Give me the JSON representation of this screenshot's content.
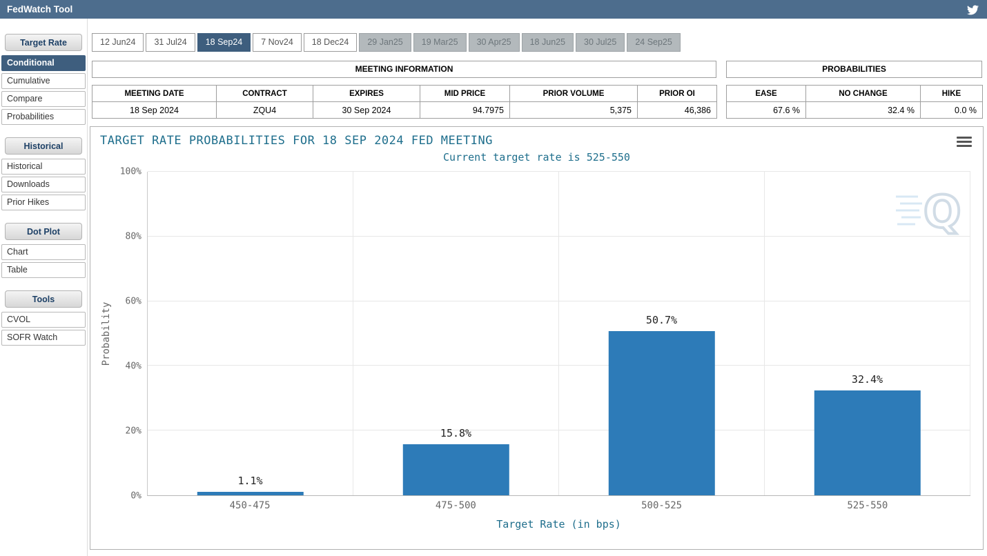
{
  "topbar": {
    "title": "FedWatch Tool"
  },
  "icons": {
    "topbar_social": "twitter-bird",
    "chart_menu": "hamburger-menu",
    "watermark": "q-logo"
  },
  "colors": {
    "topbar": "#4d6d8d",
    "selected": "#3e5e7e",
    "bar": "#2d7bb8",
    "chart_text": "#1e6e8c"
  },
  "tabs": [
    {
      "label": "12 Jun24",
      "state": "normal"
    },
    {
      "label": "31 Jul24",
      "state": "normal"
    },
    {
      "label": "18 Sep24",
      "state": "selected"
    },
    {
      "label": "7 Nov24",
      "state": "normal"
    },
    {
      "label": "18 Dec24",
      "state": "normal"
    },
    {
      "label": "29 Jan25",
      "state": "muted"
    },
    {
      "label": "19 Mar25",
      "state": "muted"
    },
    {
      "label": "30 Apr25",
      "state": "muted"
    },
    {
      "label": "18 Jun25",
      "state": "muted"
    },
    {
      "label": "30 Jul25",
      "state": "muted"
    },
    {
      "label": "24 Sep25",
      "state": "muted"
    }
  ],
  "sidebar": {
    "sections": [
      {
        "header": "Target Rate",
        "items": [
          {
            "label": "Conditional",
            "selected": true
          },
          {
            "label": "Cumulative",
            "selected": false
          },
          {
            "label": "Compare",
            "selected": false
          },
          {
            "label": "Probabilities",
            "selected": false
          }
        ]
      },
      {
        "header": "Historical",
        "items": [
          {
            "label": "Historical",
            "selected": false
          },
          {
            "label": "Downloads",
            "selected": false
          },
          {
            "label": "Prior Hikes",
            "selected": false
          }
        ]
      },
      {
        "header": "Dot Plot",
        "items": [
          {
            "label": "Chart",
            "selected": false
          },
          {
            "label": "Table",
            "selected": false
          }
        ]
      },
      {
        "header": "Tools",
        "items": [
          {
            "label": "CVOL",
            "selected": false
          },
          {
            "label": "SOFR Watch",
            "selected": false
          }
        ]
      }
    ]
  },
  "meeting_info": {
    "title": "MEETING INFORMATION",
    "headers": [
      "MEETING DATE",
      "CONTRACT",
      "EXPIRES",
      "MID PRICE",
      "PRIOR VOLUME",
      "PRIOR OI"
    ],
    "values": [
      "18 Sep 2024",
      "ZQU4",
      "30 Sep 2024",
      "94.7975",
      "5,375",
      "46,386"
    ]
  },
  "probabilities": {
    "title": "PROBABILITIES",
    "headers": [
      "EASE",
      "NO CHANGE",
      "HIKE"
    ],
    "values": [
      "67.6 %",
      "32.4 %",
      "0.0 %"
    ]
  },
  "chart_data": {
    "type": "bar",
    "title": "TARGET RATE PROBABILITIES FOR 18 SEP 2024 FED MEETING",
    "subtitle": "Current target rate is 525-550",
    "categories": [
      "450-475",
      "475-500",
      "500-525",
      "525-550"
    ],
    "values": [
      1.1,
      15.8,
      50.7,
      32.4
    ],
    "value_labels": [
      "1.1%",
      "15.8%",
      "50.7%",
      "32.4%"
    ],
    "xlabel": "Target Rate (in bps)",
    "ylabel": "Probability",
    "ylim": [
      0,
      100
    ],
    "yticks": [
      "0%",
      "20%",
      "40%",
      "60%",
      "80%",
      "100%"
    ],
    "grid": true,
    "legend": "none",
    "bar_color": "#2d7bb8"
  }
}
